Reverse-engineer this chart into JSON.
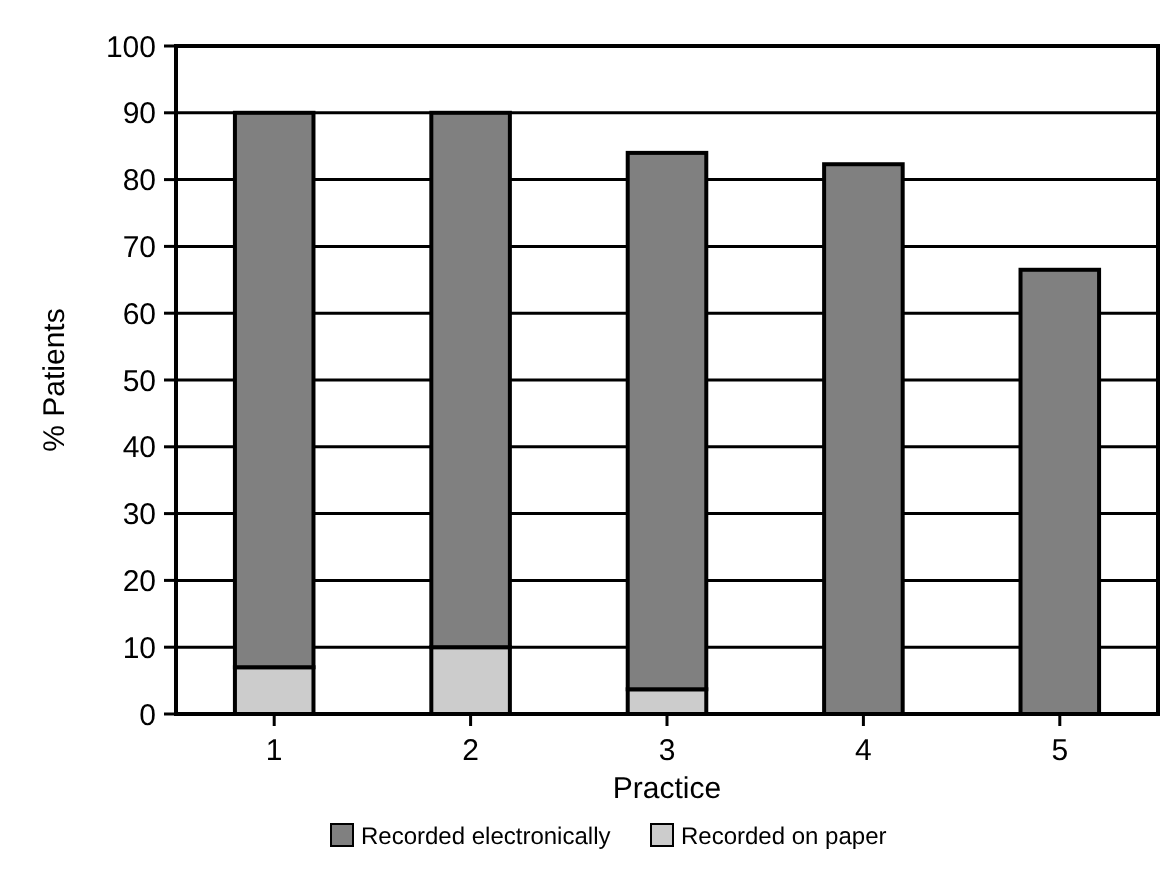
{
  "chart_data": {
    "type": "bar",
    "stacked": true,
    "xlabel": "Practice",
    "ylabel": "% Patients",
    "categories": [
      "1",
      "2",
      "3",
      "4",
      "5"
    ],
    "series": [
      {
        "name": "Recorded on paper",
        "color": "#cccccc",
        "values": [
          7,
          10,
          3.7,
          0,
          0
        ]
      },
      {
        "name": "Recorded electronically",
        "color": "#808080",
        "values": [
          83,
          80,
          80.3,
          82.3,
          66.5
        ]
      }
    ],
    "ylim": [
      0,
      100
    ],
    "yticks": [
      0,
      10,
      20,
      30,
      40,
      50,
      60,
      70,
      80,
      90,
      100
    ],
    "grid": "y",
    "legend": "bottom"
  }
}
